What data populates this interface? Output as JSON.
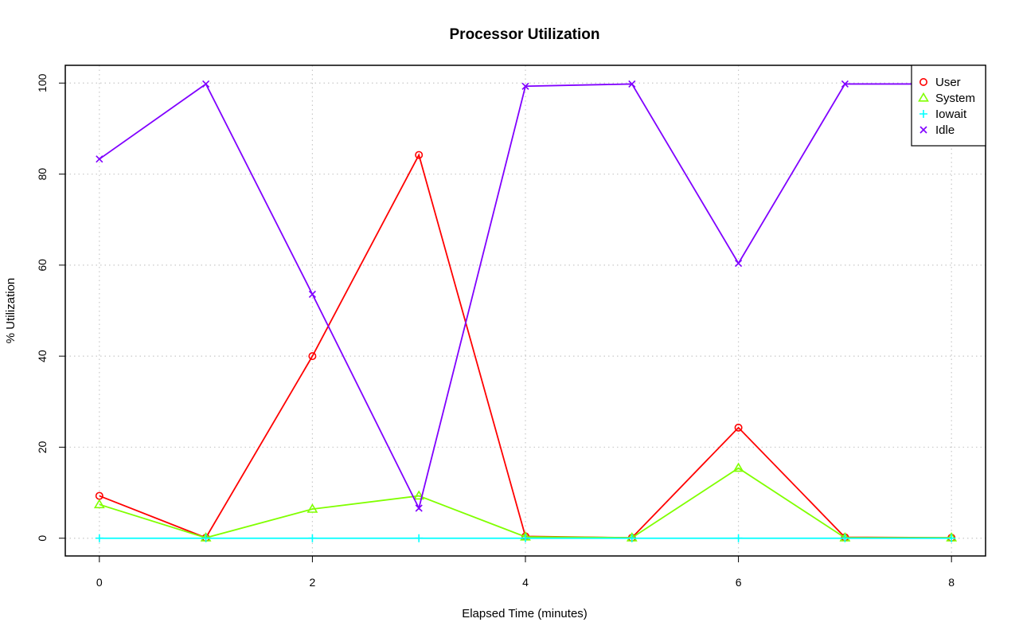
{
  "chart_data": {
    "type": "line",
    "title": "Processor Utilization",
    "xlabel": "Elapsed Time (minutes)",
    "ylabel": "% Utilization",
    "xlim": [
      -0.32,
      8.32
    ],
    "ylim": [
      -3.9,
      103.9
    ],
    "x_ticks": [
      0,
      2,
      4,
      6,
      8
    ],
    "y_ticks": [
      0,
      20,
      40,
      60,
      80,
      100
    ],
    "grid": true,
    "legend_position": "top-right",
    "x": [
      0,
      1,
      2,
      3,
      4,
      5,
      6,
      7,
      8
    ],
    "series": [
      {
        "name": "User",
        "color": "#ff0000",
        "marker": "circle",
        "values": [
          9.3,
          0.1,
          40.0,
          84.2,
          0.4,
          0.1,
          24.3,
          0.2,
          0.1
        ]
      },
      {
        "name": "System",
        "color": "#80ff00",
        "marker": "triangle",
        "values": [
          7.4,
          0.1,
          6.4,
          9.3,
          0.3,
          0.1,
          15.4,
          0.1,
          0.1
        ]
      },
      {
        "name": "Iowait",
        "color": "#00ffff",
        "marker": "plus",
        "values": [
          0,
          0,
          0,
          0,
          0,
          0,
          0,
          0,
          0
        ]
      },
      {
        "name": "Idle",
        "color": "#8000ff",
        "marker": "cross",
        "values": [
          83.3,
          99.8,
          53.6,
          6.6,
          99.3,
          99.8,
          60.4,
          99.8,
          99.8
        ]
      }
    ]
  }
}
